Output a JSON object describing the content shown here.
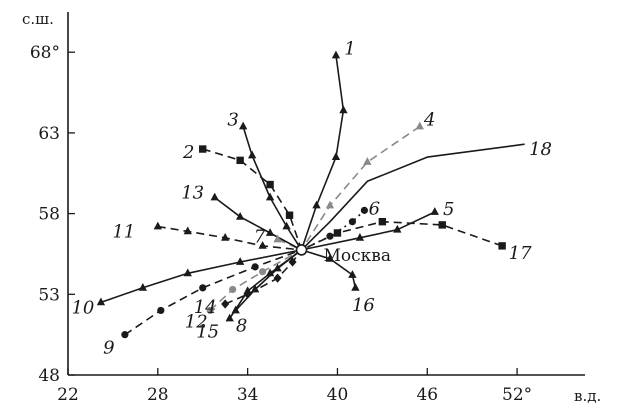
{
  "chart_data": {
    "type": "line",
    "xlabel": "в.д.",
    "ylabel": "с.ш.",
    "xlim": [
      22,
      55
    ],
    "ylim": [
      48,
      69.5
    ],
    "x_ticks": [
      {
        "value": 22,
        "label": "22"
      },
      {
        "value": 28,
        "label": "28"
      },
      {
        "value": 34,
        "label": "34"
      },
      {
        "value": 40,
        "label": "40"
      },
      {
        "value": 46,
        "label": "46"
      },
      {
        "value": 52,
        "label": "52°"
      }
    ],
    "y_ticks": [
      {
        "value": 48,
        "label": "48"
      },
      {
        "value": 53,
        "label": "53"
      },
      {
        "value": 58,
        "label": "58"
      },
      {
        "value": 63,
        "label": "63"
      },
      {
        "value": 68,
        "label": "68°"
      }
    ],
    "grid": false,
    "center": {
      "name": "Москва",
      "lon": 37.6,
      "lat": 55.75
    },
    "colors": {
      "solid": "#1a1a1a",
      "dashed_dark": "#1a1a1a",
      "dashed_gray": "#8a8a8a"
    },
    "series": [
      {
        "name": "1",
        "style": "solid",
        "color": "#1a1a1a",
        "marker": "tri",
        "points": [
          [
            39.9,
            67.8
          ],
          [
            40.4,
            64.4
          ],
          [
            39.9,
            61.5
          ],
          [
            38.6,
            58.5
          ],
          [
            37.6,
            55.75
          ]
        ]
      },
      {
        "name": "2",
        "style": "dash",
        "color": "#1a1a1a",
        "marker": "square",
        "points": [
          [
            31.0,
            62.0
          ],
          [
            33.5,
            61.3
          ],
          [
            35.5,
            59.8
          ],
          [
            36.8,
            57.9
          ],
          [
            37.6,
            55.75
          ]
        ]
      },
      {
        "name": "3",
        "style": "solid",
        "color": "#1a1a1a",
        "marker": "tri",
        "points": [
          [
            33.7,
            63.4
          ],
          [
            34.3,
            61.6
          ],
          [
            35.5,
            59.0
          ],
          [
            36.6,
            57.2
          ],
          [
            37.6,
            55.75
          ]
        ]
      },
      {
        "name": "4",
        "style": "dash",
        "color": "#8a8a8a",
        "marker": "tri",
        "points": [
          [
            45.5,
            63.4
          ],
          [
            42.0,
            61.2
          ],
          [
            39.5,
            58.5
          ],
          [
            37.6,
            55.75
          ]
        ]
      },
      {
        "name": "5",
        "style": "solid",
        "color": "#1a1a1a",
        "marker": "tri",
        "points": [
          [
            46.5,
            58.1
          ],
          [
            44.0,
            57.0
          ],
          [
            41.5,
            56.5
          ],
          [
            37.6,
            55.75
          ]
        ]
      },
      {
        "name": "6",
        "style": "dot",
        "color": "#1a1a1a",
        "marker": "circle",
        "points": [
          [
            41.8,
            58.2
          ],
          [
            41.0,
            57.5
          ],
          [
            39.5,
            56.6
          ],
          [
            37.6,
            55.75
          ]
        ]
      },
      {
        "name": "7",
        "style": "dash",
        "color": "#8a8a8a",
        "marker": "tri",
        "points": [
          [
            36.0,
            56.4
          ],
          [
            37.6,
            55.75
          ]
        ]
      },
      {
        "name": "8",
        "style": "solid",
        "color": "#1a1a1a",
        "marker": "tri",
        "points": [
          [
            33.2,
            52.0
          ],
          [
            34.5,
            53.3
          ],
          [
            36.0,
            54.6
          ],
          [
            37.6,
            55.75
          ]
        ]
      },
      {
        "name": "9",
        "style": "dash",
        "color": "#1a1a1a",
        "marker": "circle",
        "points": [
          [
            25.8,
            50.5
          ],
          [
            28.2,
            52.0
          ],
          [
            31.0,
            53.4
          ],
          [
            34.5,
            54.7
          ],
          [
            37.6,
            55.75
          ]
        ]
      },
      {
        "name": "10",
        "style": "solid",
        "color": "#1a1a1a",
        "marker": "tri",
        "points": [
          [
            24.2,
            52.5
          ],
          [
            27.0,
            53.4
          ],
          [
            30.0,
            54.3
          ],
          [
            33.5,
            55.0
          ],
          [
            37.6,
            55.75
          ]
        ]
      },
      {
        "name": "11",
        "style": "dash",
        "color": "#1a1a1a",
        "marker": "tri",
        "points": [
          [
            28.0,
            57.2
          ],
          [
            30.0,
            56.9
          ],
          [
            32.5,
            56.5
          ],
          [
            35.0,
            56.0
          ],
          [
            37.6,
            55.75
          ]
        ]
      },
      {
        "name": "12",
        "style": "dash",
        "color": "#8a8a8a",
        "marker": "circle",
        "points": [
          [
            31.5,
            52.0
          ],
          [
            33.0,
            53.3
          ],
          [
            35.0,
            54.4
          ],
          [
            37.6,
            55.75
          ]
        ]
      },
      {
        "name": "13",
        "style": "solid",
        "color": "#1a1a1a",
        "marker": "tri",
        "points": [
          [
            31.8,
            59.0
          ],
          [
            33.5,
            57.8
          ],
          [
            35.5,
            56.8
          ],
          [
            37.6,
            55.75
          ]
        ]
      },
      {
        "name": "14",
        "style": "dash",
        "color": "#1a1a1a",
        "marker": "diamond",
        "points": [
          [
            32.5,
            52.4
          ],
          [
            34.0,
            53.0
          ],
          [
            36.0,
            54.0
          ],
          [
            37.0,
            55.0
          ],
          [
            37.6,
            55.75
          ]
        ]
      },
      {
        "name": "15",
        "style": "solid",
        "color": "#1a1a1a",
        "marker": "tri",
        "points": [
          [
            32.8,
            51.5
          ],
          [
            34.0,
            53.2
          ],
          [
            35.5,
            54.3
          ],
          [
            37.6,
            55.75
          ]
        ]
      },
      {
        "name": "16",
        "style": "solid",
        "color": "#1a1a1a",
        "marker": "tri",
        "points": [
          [
            41.2,
            53.4
          ],
          [
            41.0,
            54.2
          ],
          [
            39.5,
            55.2
          ],
          [
            37.6,
            55.75
          ]
        ]
      },
      {
        "name": "17",
        "style": "dash",
        "color": "#1a1a1a",
        "marker": "square",
        "points": [
          [
            51.0,
            56.0
          ],
          [
            47.0,
            57.3
          ],
          [
            43.0,
            57.5
          ],
          [
            40.0,
            56.8
          ],
          [
            37.6,
            55.75
          ]
        ]
      },
      {
        "name": "18",
        "style": "solid",
        "color": "#1a1a1a",
        "marker": "none",
        "points": [
          [
            52.5,
            62.3
          ],
          [
            46.0,
            61.5
          ],
          [
            42.0,
            60.0
          ],
          [
            39.5,
            57.5
          ],
          [
            37.6,
            55.75
          ]
        ]
      }
    ]
  }
}
